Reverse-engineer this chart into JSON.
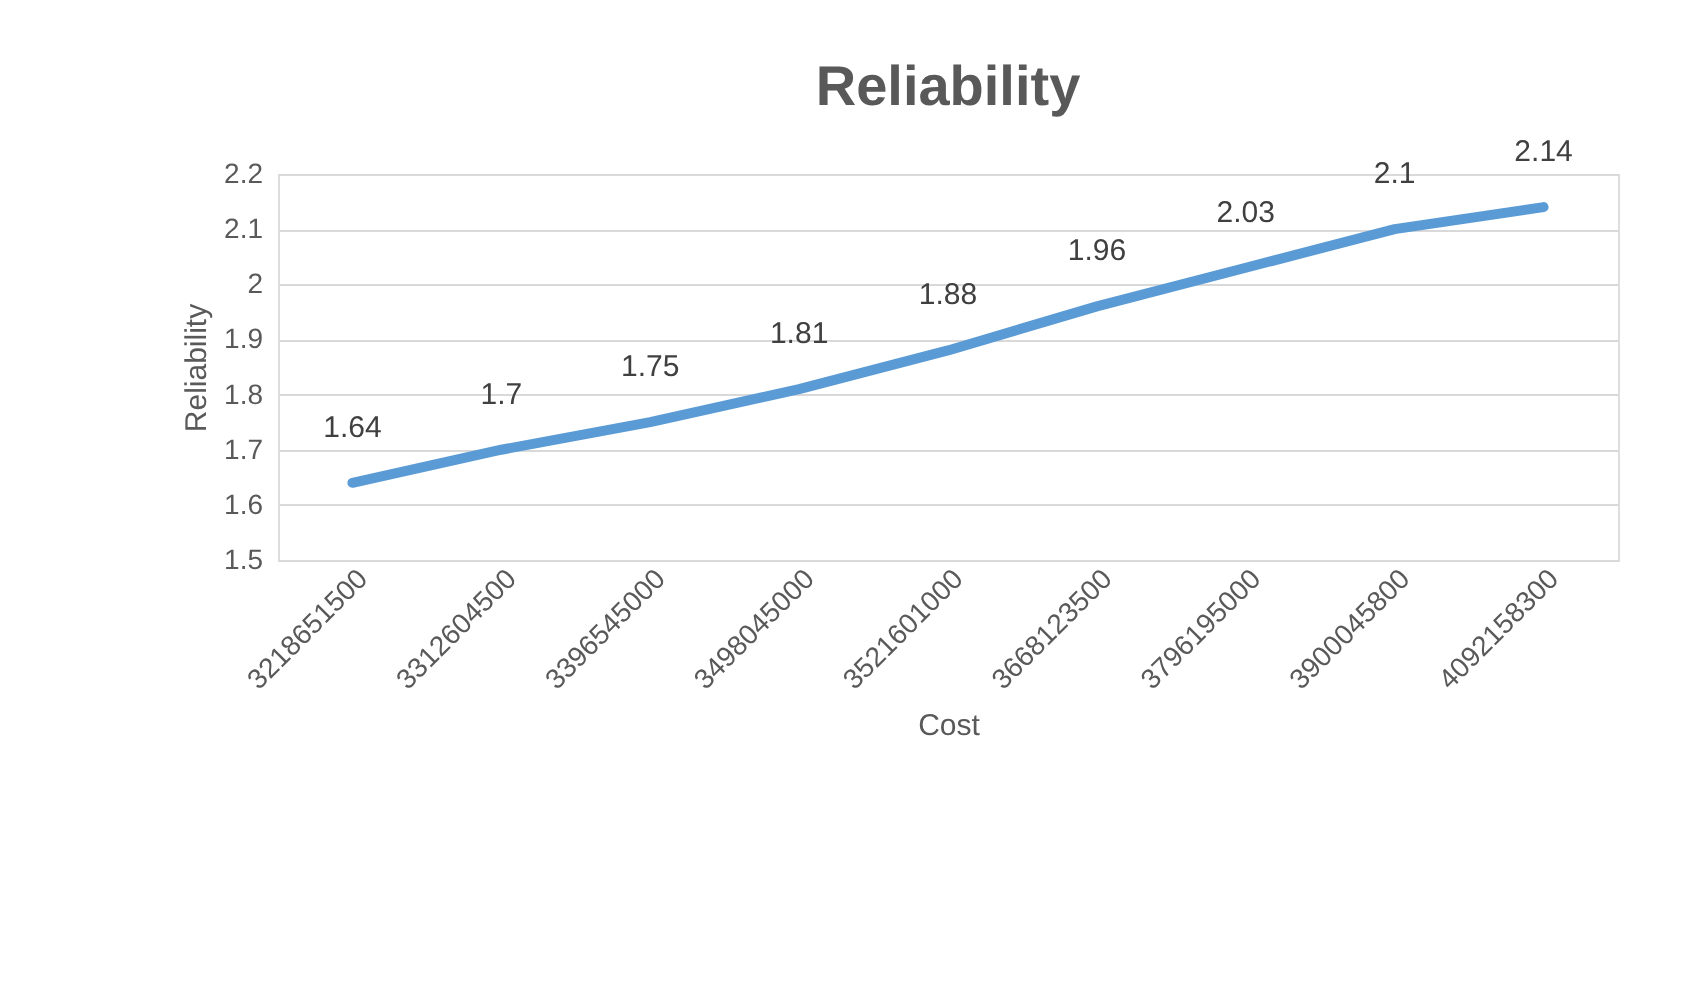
{
  "chart_data": {
    "type": "line",
    "title": "Reliability",
    "xlabel": "Cost",
    "ylabel": "Reliability",
    "categories": [
      "3218651500",
      "3312604500",
      "3396545000",
      "3498045000",
      "3521601000",
      "3668123500",
      "3796195000",
      "3900045800",
      "4092158300"
    ],
    "series": [
      {
        "color": "#5b9bd5",
        "values": [
          1.64,
          1.7,
          1.75,
          1.81,
          1.88,
          1.96,
          2.03,
          2.1,
          2.14
        ]
      }
    ],
    "ylim": [
      1.5,
      2.2
    ],
    "yticks": [
      1.5,
      1.6,
      1.7,
      1.8,
      1.9,
      2,
      2.1,
      2.2
    ],
    "grid": "y",
    "data_labels": true,
    "marker": "none",
    "line_style": "solid",
    "legend": false
  }
}
